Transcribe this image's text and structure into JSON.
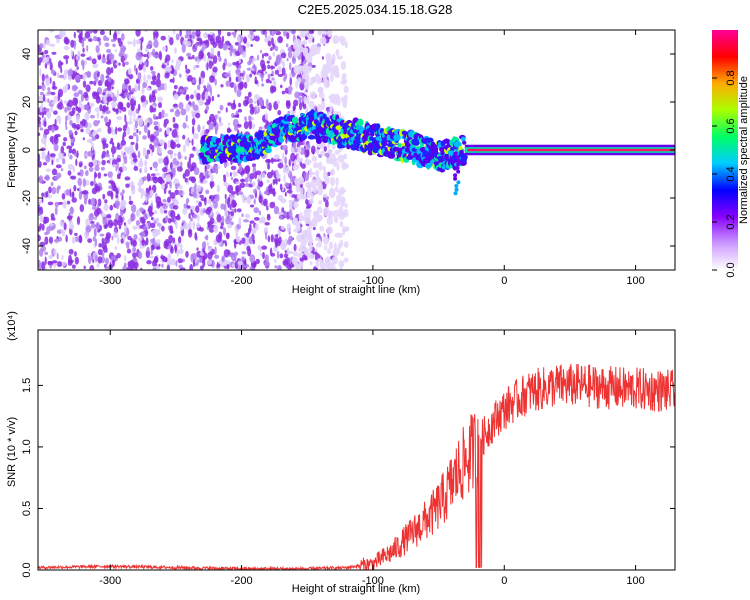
{
  "title": "C2E5.2025.034.15.18.G28",
  "chart_data": [
    {
      "type": "heatmap",
      "xlabel": "Height of straight line (km)",
      "ylabel": "Frequency (Hz)",
      "xlim": [
        -355,
        130
      ],
      "ylim": [
        -50,
        50
      ],
      "xticks": [
        -300,
        -200,
        -100,
        0,
        100
      ],
      "yticks": [
        -40,
        -20,
        0,
        20,
        40
      ],
      "colorbar": {
        "label": "Normalized spectral amplitude",
        "range": [
          0,
          1
        ],
        "ticks": [
          "0.0",
          "0.2",
          "0.4",
          "0.6",
          "0.8"
        ],
        "colors": [
          "#ffffff",
          "#cc99ff",
          "#8800ff",
          "#0000ff",
          "#00ccff",
          "#00ff66",
          "#aaff00",
          "#ffaa00",
          "#ff0000",
          "#ff0099"
        ]
      },
      "trace": [
        {
          "x": -225,
          "f": 0
        },
        {
          "x": -190,
          "f": 1
        },
        {
          "x": -170,
          "f": 8
        },
        {
          "x": -150,
          "f": 10
        },
        {
          "x": -130,
          "f": 8
        },
        {
          "x": -110,
          "f": 6
        },
        {
          "x": -90,
          "f": 3
        },
        {
          "x": -70,
          "f": 1
        },
        {
          "x": -50,
          "f": -3
        },
        {
          "x": -35,
          "f": -1
        },
        {
          "x": -30,
          "f": 0
        },
        {
          "x": 0,
          "f": 0
        },
        {
          "x": 130,
          "f": 0
        }
      ]
    },
    {
      "type": "line",
      "xlabel": "Height of straight line (km)",
      "ylabel": "SNR (10 * v/v)",
      "scale_label": "(x10⁴)",
      "xlim": [
        -355,
        130
      ],
      "ylim": [
        0,
        1.95
      ],
      "xticks": [
        -300,
        -200,
        -100,
        0,
        100
      ],
      "yticks": [
        "0.0",
        "0.5",
        "1.0",
        "1.5"
      ],
      "ytick_values": [
        0,
        0.5,
        1.0,
        1.5
      ],
      "color": "#ee3333",
      "series_points": [
        {
          "x": -355,
          "y": 0.02
        },
        {
          "x": -300,
          "y": 0.03
        },
        {
          "x": -250,
          "y": 0.02
        },
        {
          "x": -200,
          "y": 0.01
        },
        {
          "x": -150,
          "y": 0.01
        },
        {
          "x": -120,
          "y": 0.02
        },
        {
          "x": -100,
          "y": 0.05
        },
        {
          "x": -85,
          "y": 0.15
        },
        {
          "x": -70,
          "y": 0.3
        },
        {
          "x": -55,
          "y": 0.45
        },
        {
          "x": -45,
          "y": 0.6
        },
        {
          "x": -35,
          "y": 0.8
        },
        {
          "x": -25,
          "y": 0.95
        },
        {
          "x": -15,
          "y": 1.1
        },
        {
          "x": -5,
          "y": 1.25
        },
        {
          "x": 5,
          "y": 1.35
        },
        {
          "x": 20,
          "y": 1.45
        },
        {
          "x": 40,
          "y": 1.5
        },
        {
          "x": 60,
          "y": 1.5
        },
        {
          "x": 80,
          "y": 1.48
        },
        {
          "x": 100,
          "y": 1.47
        },
        {
          "x": 130,
          "y": 1.45
        }
      ]
    }
  ]
}
